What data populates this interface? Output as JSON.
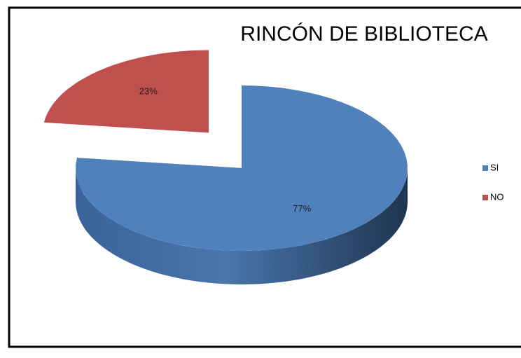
{
  "chart_data": {
    "type": "pie3d",
    "title": "RINCÓN DE BIBLIOTECA",
    "categories": [
      "SI",
      "NO"
    ],
    "values": [
      77,
      23
    ],
    "value_labels": [
      "77%",
      "23%"
    ],
    "colors": [
      "#4f81bd",
      "#c0504d"
    ],
    "exploded": [
      false,
      true
    ],
    "legend": "right"
  }
}
